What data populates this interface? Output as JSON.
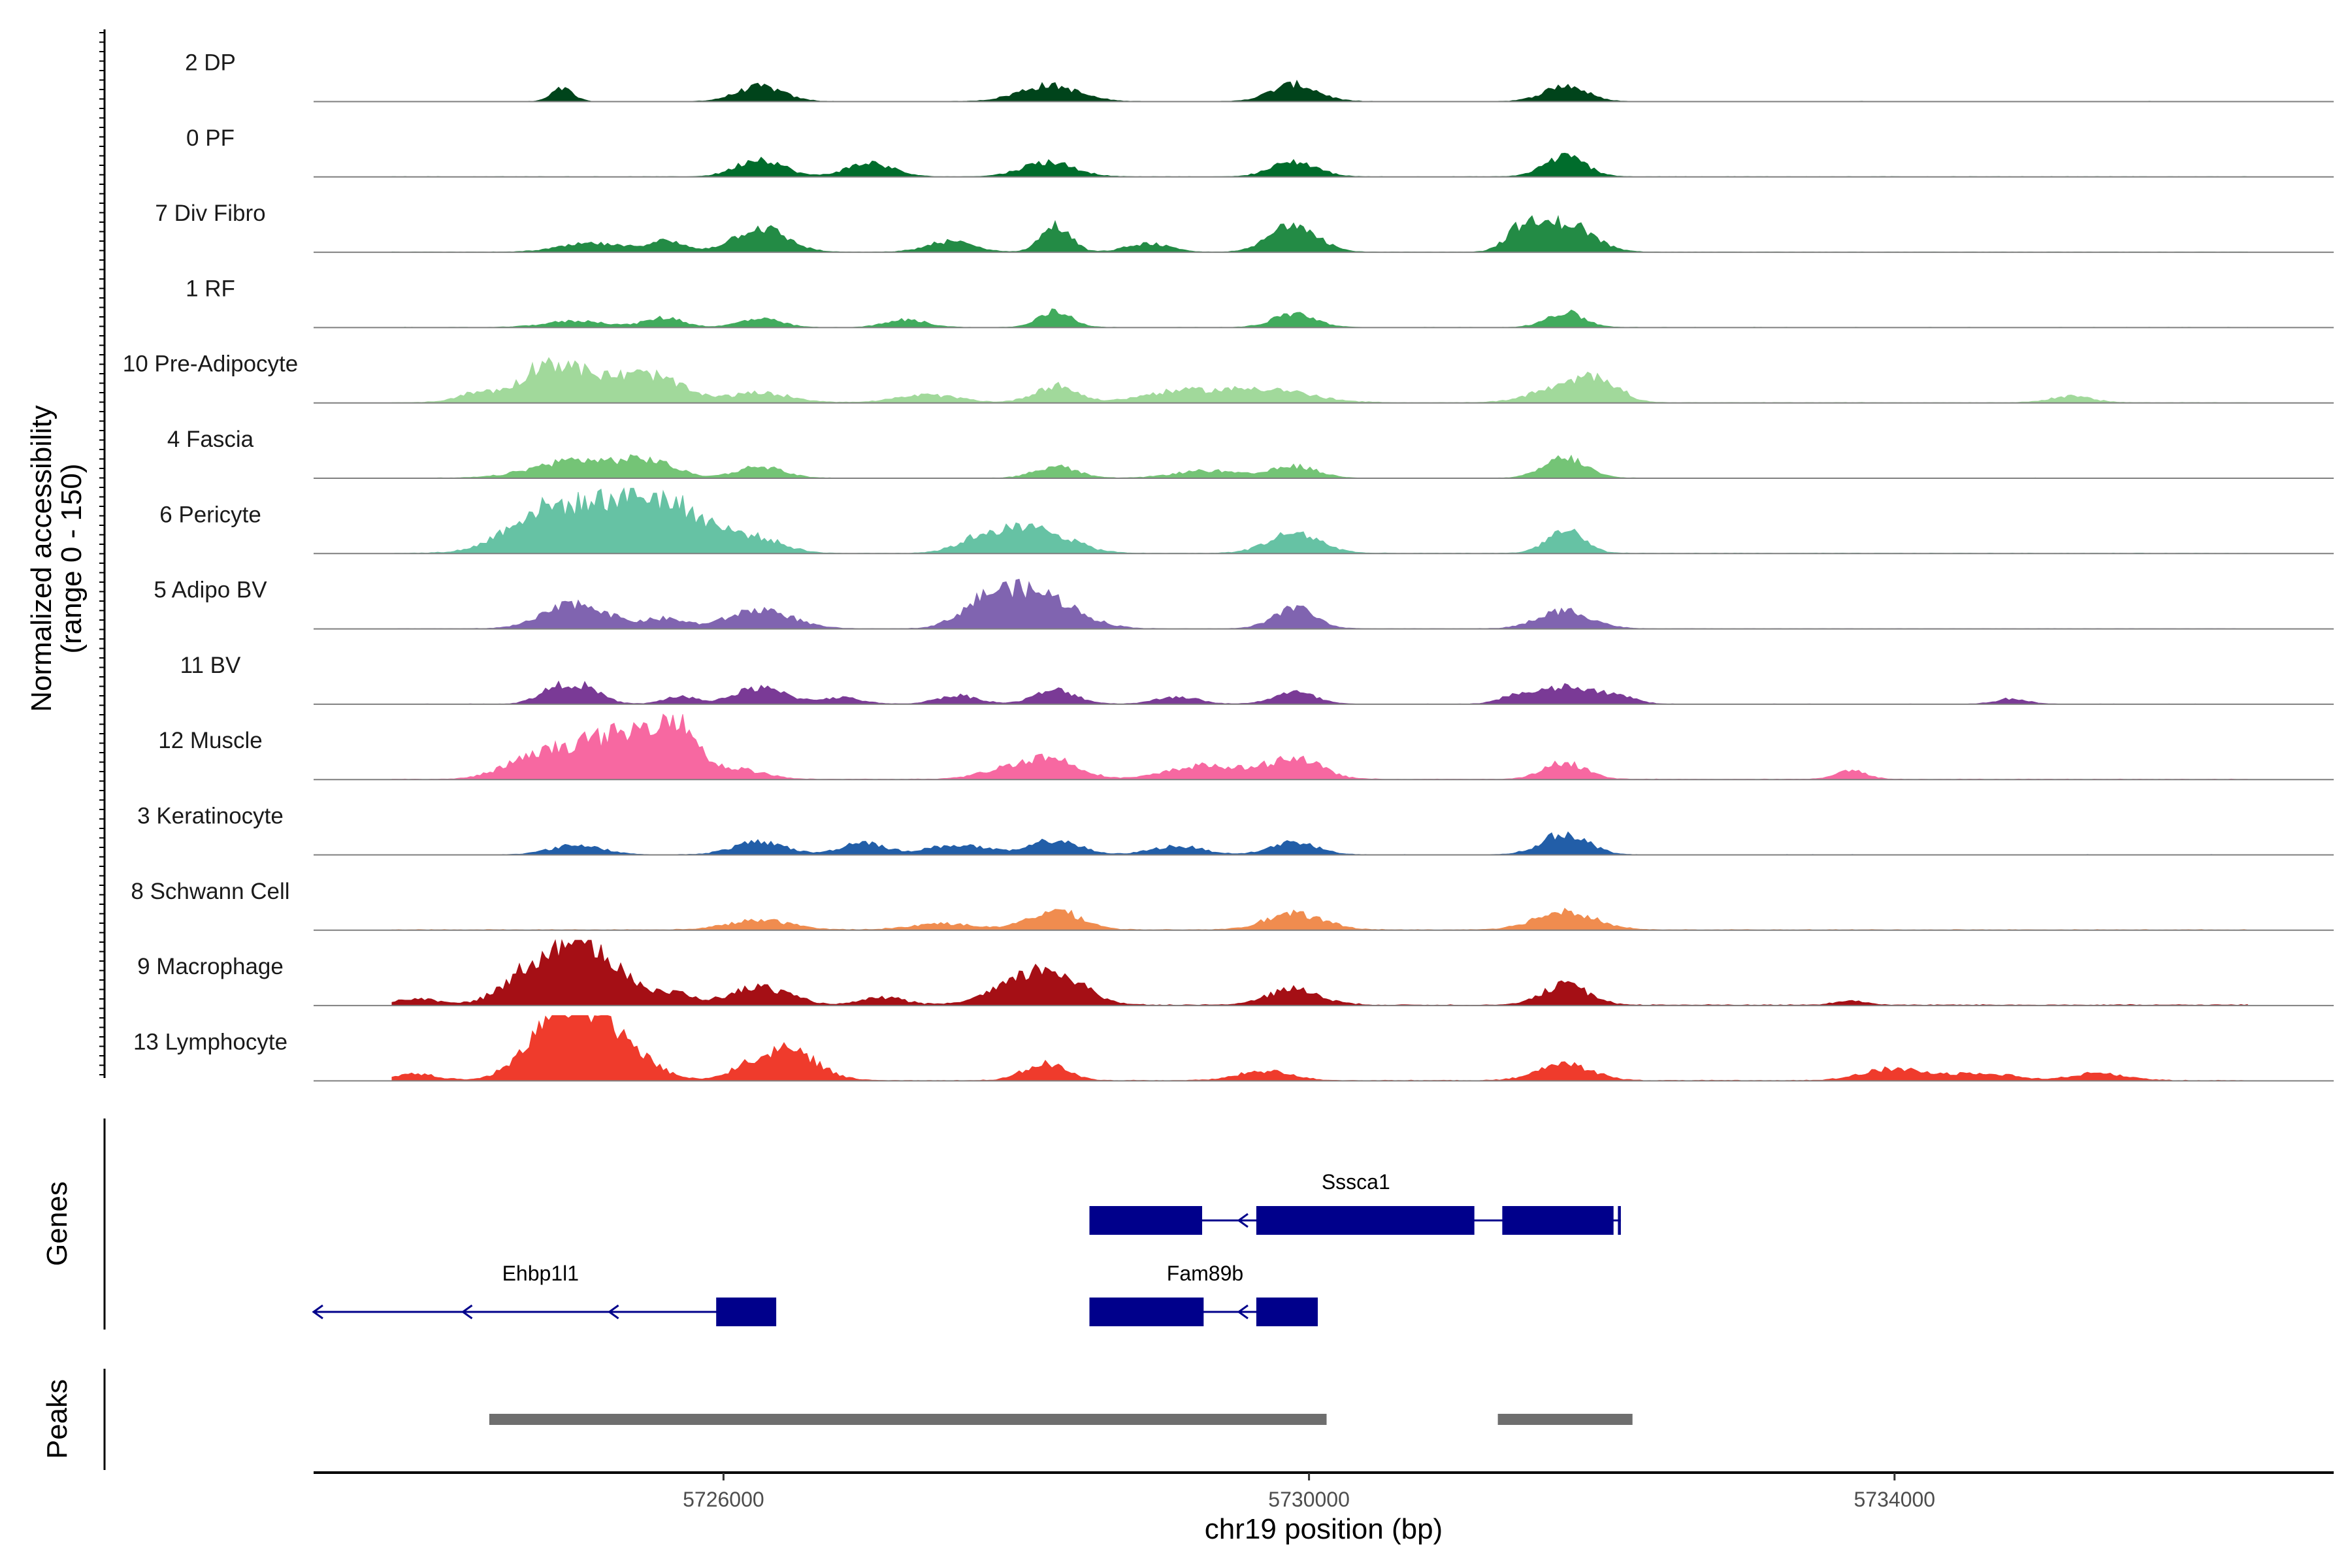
{
  "chart_data": {
    "type": "area",
    "description_free": true,
    "y_axis_title_line1": "Normalized accessibility",
    "y_axis_title_line2": "(range 0 - 150)",
    "ylim": [
      0,
      150
    ],
    "xlabel": "chr19 position (bp)",
    "xlim": [
      5723200,
      5737000
    ],
    "x_ticks": [
      5726000,
      5730000,
      5734000
    ],
    "x_tick_labels": [
      "5726000",
      "5730000",
      "5734000"
    ],
    "genes_panel_label": "Genes",
    "peaks_panel_label": "Peaks",
    "tracks": [
      {
        "name": "2 DP",
        "color": "#00441b",
        "baseline": 2,
        "peaks": [
          [
            5726250,
            140,
            22
          ],
          [
            5728220,
            150,
            28
          ],
          [
            5729900,
            160,
            22
          ],
          [
            5731750,
            150,
            20
          ],
          [
            5724900,
            120,
            10
          ]
        ]
      },
      {
        "name": "0 PF",
        "color": "#006d2c",
        "baseline": 2,
        "peaks": [
          [
            5726250,
            170,
            22
          ],
          [
            5727000,
            130,
            22
          ],
          [
            5728220,
            140,
            25
          ],
          [
            5729900,
            140,
            22
          ],
          [
            5731750,
            190,
            20
          ]
        ]
      },
      {
        "name": "7 Div Fibro",
        "color": "#238b45",
        "baseline": 2,
        "peaks": [
          [
            5725100,
            80,
            30
          ],
          [
            5725600,
            100,
            18
          ],
          [
            5726250,
            230,
            25
          ],
          [
            5727550,
            100,
            22
          ],
          [
            5728270,
            250,
            14
          ],
          [
            5728900,
            80,
            20
          ],
          [
            5729900,
            280,
            22
          ],
          [
            5731450,
            200,
            15
          ],
          [
            5731750,
            280,
            25
          ]
        ]
      },
      {
        "name": "1 RF",
        "color": "#41ab5d",
        "baseline": 2,
        "peaks": [
          [
            5725000,
            60,
            30
          ],
          [
            5725600,
            90,
            18
          ],
          [
            5726250,
            80,
            20
          ],
          [
            5727250,
            70,
            20
          ],
          [
            5728270,
            150,
            16
          ],
          [
            5729900,
            130,
            20
          ],
          [
            5731750,
            140,
            18
          ]
        ]
      },
      {
        "name": "10 Pre-Adipocyte",
        "color": "#a1d99b",
        "baseline": 3,
        "peaks": [
          [
            5724350,
            100,
            22
          ],
          [
            5724750,
            230,
            20
          ],
          [
            5725000,
            260,
            30
          ],
          [
            5725500,
            250,
            30
          ],
          [
            5726250,
            90,
            30
          ],
          [
            5727400,
            70,
            30
          ],
          [
            5728270,
            160,
            20
          ],
          [
            5729100,
            100,
            35
          ],
          [
            5729700,
            130,
            40
          ],
          [
            5731750,
            150,
            30
          ],
          [
            5732000,
            170,
            18
          ],
          [
            5735200,
            60,
            20
          ]
        ]
      },
      {
        "name": "4 Fascia",
        "color": "#74c476",
        "baseline": 2,
        "peaks": [
          [
            5725000,
            170,
            40
          ],
          [
            5725500,
            140,
            25
          ],
          [
            5726250,
            110,
            22
          ],
          [
            5728270,
            110,
            20
          ],
          [
            5729300,
            70,
            30
          ],
          [
            5729900,
            110,
            22
          ],
          [
            5731750,
            190,
            20
          ]
        ]
      },
      {
        "name": "6 Pericyte",
        "color": "#66c2a4",
        "baseline": 3,
        "peaks": [
          [
            5724700,
            200,
            30
          ],
          [
            5725050,
            310,
            50
          ],
          [
            5725450,
            320,
            40
          ],
          [
            5725800,
            200,
            35
          ],
          [
            5726250,
            110,
            25
          ],
          [
            5727800,
            160,
            25
          ],
          [
            5728170,
            210,
            30
          ],
          [
            5729900,
            190,
            25
          ],
          [
            5731750,
            210,
            18
          ]
        ]
      },
      {
        "name": "5 Adipo BV",
        "color": "#8064b0",
        "baseline": 2,
        "peaks": [
          [
            5725000,
            240,
            30
          ],
          [
            5725600,
            90,
            20
          ],
          [
            5726250,
            180,
            30
          ],
          [
            5727800,
            220,
            25
          ],
          [
            5728150,
            320,
            35
          ],
          [
            5729900,
            200,
            20
          ],
          [
            5731750,
            170,
            25
          ]
        ]
      },
      {
        "name": "11 BV",
        "color": "#7a3a96",
        "baseline": 2,
        "peaks": [
          [
            5724800,
            70,
            15
          ],
          [
            5725000,
            180,
            20
          ],
          [
            5725700,
            70,
            15
          ],
          [
            5726250,
            150,
            25
          ],
          [
            5726800,
            60,
            20
          ],
          [
            5727600,
            80,
            20
          ],
          [
            5728270,
            130,
            20
          ],
          [
            5729100,
            70,
            20
          ],
          [
            5729900,
            110,
            20
          ],
          [
            5731400,
            70,
            15
          ],
          [
            5731750,
            160,
            25
          ],
          [
            5732100,
            70,
            18
          ],
          [
            5734800,
            50,
            15
          ]
        ]
      },
      {
        "name": "12 Muscle",
        "color": "#f768a1",
        "baseline": 3,
        "peaks": [
          [
            5724600,
            110,
            25
          ],
          [
            5724950,
            270,
            30
          ],
          [
            5725300,
            320,
            25
          ],
          [
            5725650,
            580,
            22
          ],
          [
            5726100,
            90,
            25
          ],
          [
            5728000,
            110,
            30
          ],
          [
            5728270,
            150,
            25
          ],
          [
            5729300,
            130,
            35
          ],
          [
            5729900,
            200,
            25
          ],
          [
            5731750,
            160,
            20
          ],
          [
            5733700,
            80,
            15
          ]
        ]
      },
      {
        "name": "3 Keratinocyte",
        "color": "#225ea8",
        "baseline": 2,
        "peaks": [
          [
            5725000,
            90,
            25
          ],
          [
            5726250,
            120,
            25
          ],
          [
            5726950,
            120,
            20
          ],
          [
            5727600,
            90,
            30
          ],
          [
            5728270,
            140,
            22
          ],
          [
            5729100,
            80,
            25
          ],
          [
            5729900,
            120,
            22
          ],
          [
            5731750,
            200,
            22
          ]
        ]
      },
      {
        "name": "8 Schwann Cell",
        "color": "#f08c4f",
        "baseline": 4,
        "peaks": [
          [
            5726250,
            90,
            30
          ],
          [
            5728270,
            180,
            25
          ],
          [
            5729900,
            150,
            28
          ],
          [
            5731750,
            180,
            28
          ],
          [
            5727500,
            60,
            30
          ]
        ]
      },
      {
        "name": "9 Macrophage",
        "color": "#a50f15",
        "baseline": 6,
        "peaks": [
          [
            5723900,
            60,
            20
          ],
          [
            5724600,
            90,
            20
          ],
          [
            5725000,
            630,
            40
          ],
          [
            5725700,
            80,
            15
          ],
          [
            5726250,
            170,
            28
          ],
          [
            5727100,
            70,
            20
          ],
          [
            5728000,
            150,
            30
          ],
          [
            5728270,
            260,
            28
          ],
          [
            5729900,
            150,
            25
          ],
          [
            5731750,
            190,
            22
          ],
          [
            5733700,
            40,
            15
          ]
        ]
      },
      {
        "name": "13 Lymphocyte",
        "color": "#ef3b2c",
        "baseline": 4,
        "peaks": [
          [
            5723900,
            60,
            20
          ],
          [
            5724700,
            90,
            20
          ],
          [
            5725000,
            720,
            35
          ],
          [
            5725400,
            120,
            25
          ],
          [
            5726250,
            160,
            25
          ],
          [
            5726500,
            210,
            25
          ],
          [
            5728200,
            160,
            20
          ],
          [
            5729700,
            90,
            25
          ],
          [
            5731750,
            160,
            25
          ],
          [
            5734000,
            110,
            30
          ],
          [
            5734600,
            70,
            30
          ],
          [
            5735400,
            70,
            25
          ]
        ]
      }
    ],
    "genes": [
      {
        "name": "Sssca1",
        "row": 1,
        "strand": "-",
        "start": 5728500,
        "end": 5732130,
        "exons": [
          [
            5728500,
            5729270
          ],
          [
            5729640,
            5731130
          ],
          [
            5731320,
            5732080
          ],
          [
            5732110,
            5732130
          ]
        ],
        "arrows": [
          5729520
        ]
      },
      {
        "name": "Ehbp1l1",
        "row": 2,
        "strand": "-",
        "start": 5723200,
        "end": 5726360,
        "exons": [
          [
            5725950,
            5726360
          ]
        ],
        "arrows": [
          5723200,
          5724220,
          5725220
        ]
      },
      {
        "name": "Fam89b",
        "row": 2,
        "strand": "-",
        "start": 5728500,
        "end": 5730060,
        "exons": [
          [
            5728500,
            5729280
          ],
          [
            5729640,
            5730060
          ]
        ],
        "arrows": [
          5729520
        ]
      }
    ],
    "peaks_regions": [
      [
        5724400,
        5730120
      ],
      [
        5731290,
        5732210
      ]
    ]
  }
}
